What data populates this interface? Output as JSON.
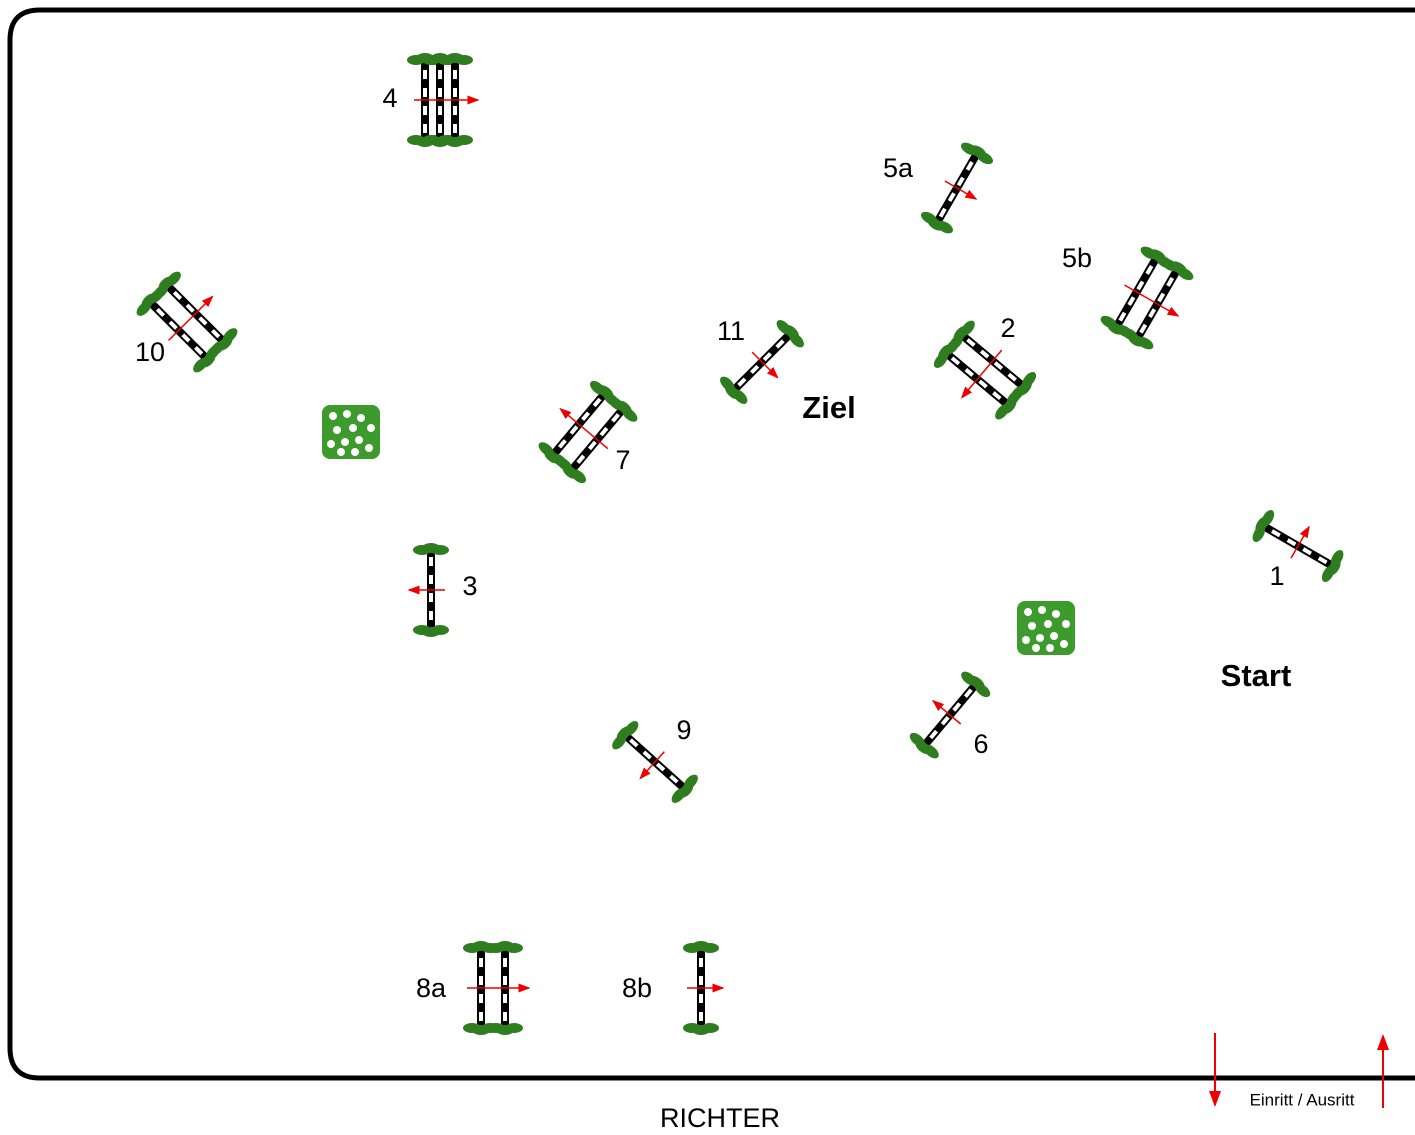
{
  "labels": {
    "start": "Start",
    "finish": "Ziel",
    "judge": "RICHTER",
    "entrance": "Einritt / Ausritt"
  },
  "jumps": [
    "1",
    "2",
    "3",
    "4",
    "5a",
    "5b",
    "6",
    "7",
    "8a",
    "8b",
    "9",
    "10",
    "11"
  ]
}
